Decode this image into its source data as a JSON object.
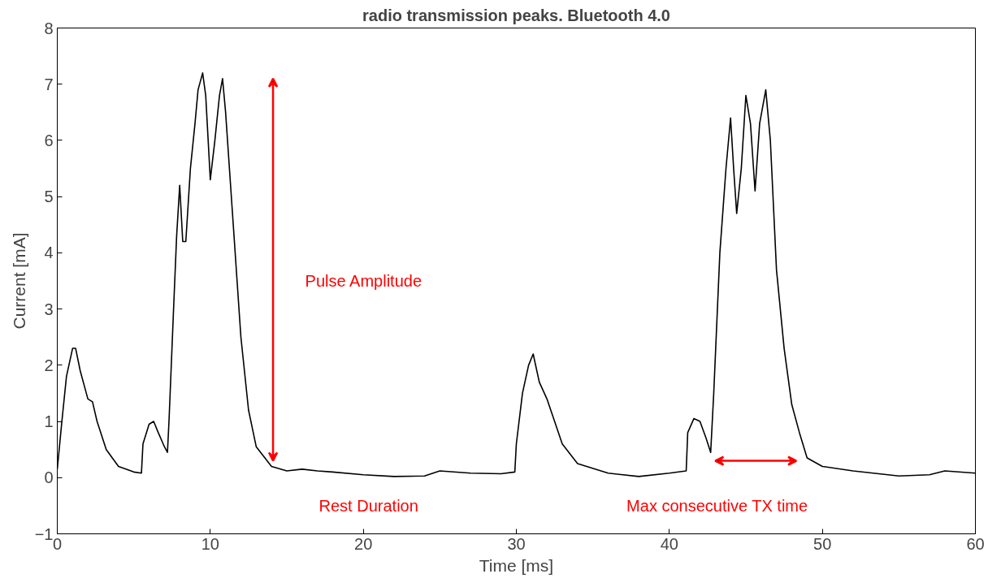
{
  "chart_data": {
    "type": "line",
    "title": "radio transmission peaks. Bluetooth 4.0",
    "xlabel": "Time [ms]",
    "ylabel": "Current [mA]",
    "xlim": [
      0,
      60
    ],
    "ylim": [
      -1,
      8
    ],
    "xticks": [
      0,
      10,
      20,
      30,
      40,
      50,
      60
    ],
    "yticks": [
      -1,
      0,
      1,
      2,
      3,
      4,
      5,
      6,
      7,
      8
    ],
    "grid": false,
    "annotations": [
      "Pulse Amplitude",
      "Rest Duration",
      "Max consecutive TX time"
    ],
    "series": [
      {
        "color": "#000000",
        "x": [
          0,
          0.3,
          0.6,
          1.0,
          1.2,
          1.5,
          2.0,
          2.3,
          2.6,
          3.2,
          4,
          5,
          5.5,
          5.6,
          6.0,
          6.3,
          6.6,
          7.0,
          7.2,
          7.3,
          7.6,
          7.8,
          8.0,
          8.2,
          8.4,
          8.7,
          9.0,
          9.2,
          9.5,
          9.7,
          10.0,
          10.3,
          10.6,
          10.8,
          11.0,
          11.5,
          12,
          12.5,
          13,
          14,
          15,
          16,
          17,
          18,
          20,
          22,
          24,
          25,
          27,
          29,
          29.9,
          30.0,
          30.4,
          30.8,
          31.1,
          31.5,
          32,
          32.5,
          33,
          34,
          36,
          38,
          40,
          41.1,
          41.2,
          41.6,
          42,
          42.4,
          42.7,
          42.9,
          43.3,
          43.7,
          44.0,
          44.2,
          44.4,
          44.7,
          45.0,
          45.3,
          45.6,
          45.9,
          46.3,
          46.6,
          47.0,
          47.5,
          48,
          48.5,
          49,
          50,
          52,
          55,
          57,
          58,
          60
        ],
        "values": [
          0.15,
          1.0,
          1.8,
          2.3,
          2.3,
          1.9,
          1.4,
          1.35,
          1.0,
          0.5,
          0.2,
          0.1,
          0.08,
          0.6,
          0.95,
          1.0,
          0.8,
          0.55,
          0.45,
          1.0,
          3.0,
          4.3,
          5.2,
          4.2,
          4.2,
          5.5,
          6.3,
          6.9,
          7.2,
          6.8,
          5.3,
          6.0,
          6.8,
          7.1,
          6.5,
          4.5,
          2.5,
          1.2,
          0.55,
          0.2,
          0.12,
          0.15,
          0.12,
          0.1,
          0.05,
          0.02,
          0.03,
          0.12,
          0.08,
          0.07,
          0.1,
          0.6,
          1.5,
          2.0,
          2.2,
          1.7,
          1.4,
          1.0,
          0.6,
          0.25,
          0.08,
          0.02,
          0.08,
          0.12,
          0.8,
          1.05,
          1.0,
          0.7,
          0.45,
          1.5,
          4.0,
          5.5,
          6.4,
          5.5,
          4.7,
          5.5,
          6.8,
          6.3,
          5.1,
          6.3,
          6.9,
          6.0,
          3.7,
          2.3,
          1.3,
          0.8,
          0.35,
          0.2,
          0.12,
          0.03,
          0.05,
          0.12,
          0.08
        ]
      }
    ]
  }
}
